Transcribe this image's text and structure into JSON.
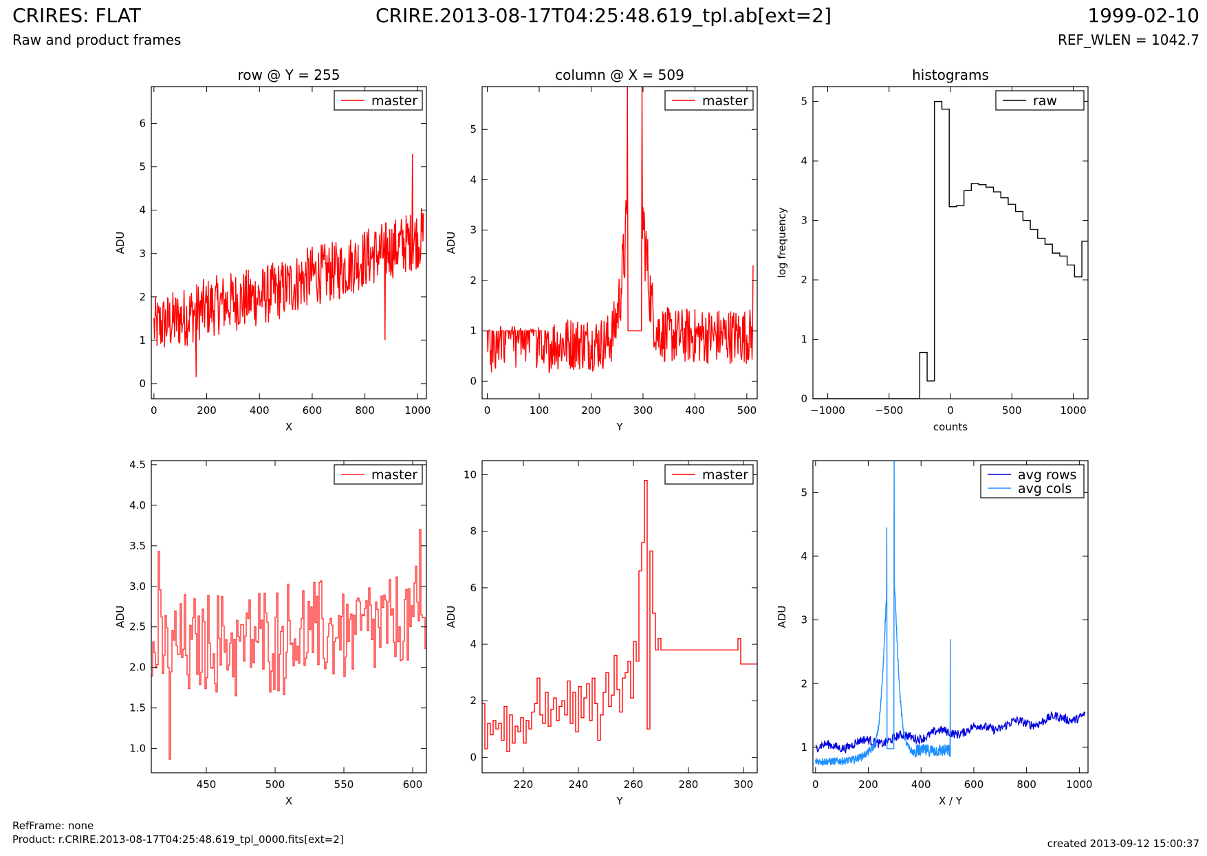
{
  "header": {
    "title": "CRIRES: FLAT",
    "subtitle": "Raw and product frames",
    "filename": "CRIRE.2013-08-17T04:25:48.619_tpl.ab[ext=2]",
    "date": "1999-02-10",
    "ref_wlen": "REF_WLEN = 1042.7"
  },
  "footer": {
    "refframe": "RefFrame: none",
    "product": "Product: r.CRIRE.2013-08-17T04:25:48.619_tpl_0000.fits[ext=2]",
    "created": "created 2013-09-12 15:00:37"
  },
  "colors": {
    "red": "#ff0000",
    "red_light": "#ff3333",
    "black": "#000000",
    "dark_blue": "#0000dd",
    "light_blue": "#1e90ff"
  },
  "chart_data": [
    {
      "type": "line",
      "title": "row @ Y = 255",
      "xlabel": "X",
      "ylabel": "ADU",
      "xlim": [
        -10,
        1033
      ],
      "ylim": [
        -0.35,
        6.85
      ],
      "xticks": [
        0,
        200,
        400,
        600,
        800,
        1000
      ],
      "yticks": [
        0,
        1,
        2,
        3,
        4,
        5,
        6
      ],
      "legend": "top-right",
      "series": [
        {
          "name": "master",
          "color": "#ff0000",
          "style": "noisy",
          "x": [
            0,
            100,
            200,
            300,
            400,
            500,
            600,
            700,
            800,
            900,
            1023
          ],
          "y": [
            1.3,
            1.5,
            1.75,
            1.9,
            2.0,
            2.2,
            2.5,
            2.6,
            2.9,
            3.1,
            3.4
          ],
          "noise": 0.7,
          "spikes": [
            [
              980,
              5.3
            ],
            [
              875,
              1.0
            ],
            [
              160,
              0.15
            ]
          ]
        }
      ]
    },
    {
      "type": "line",
      "title": "column @ X = 509",
      "xlabel": "Y",
      "ylabel": "ADU",
      "xlim": [
        -10,
        520
      ],
      "ylim": [
        -0.35,
        5.85
      ],
      "xticks": [
        0,
        100,
        200,
        300,
        400,
        500
      ],
      "yticks": [
        0,
        1,
        2,
        3,
        4,
        5
      ],
      "legend": "top-right",
      "series": [
        {
          "name": "master",
          "color": "#ff0000",
          "style": "column",
          "flat_end": 120,
          "plateau": [
            270,
            298
          ],
          "plateau_value": 1.0,
          "peak_value": 5.85,
          "edge_spike": [
            512,
            2.3
          ]
        }
      ]
    },
    {
      "type": "step",
      "title": "histograms",
      "xlabel": "counts",
      "ylabel": "log frequency",
      "xlim": [
        -1120,
        1120
      ],
      "ylim": [
        0,
        5.25
      ],
      "xticks": [
        -1000,
        -500,
        0,
        500,
        1000
      ],
      "yticks": [
        0,
        1,
        2,
        3,
        4,
        5
      ],
      "legend": "top-right",
      "series": [
        {
          "name": "raw",
          "color": "#000000",
          "edges": [
            -250,
            -190,
            -130,
            -70,
            -10,
            50,
            110,
            170,
            230,
            290,
            350,
            410,
            470,
            530,
            590,
            650,
            710,
            770,
            830,
            890,
            950,
            1010,
            1070,
            1120
          ],
          "values": [
            0.78,
            0.3,
            5.0,
            4.87,
            3.23,
            3.25,
            3.5,
            3.62,
            3.6,
            3.56,
            3.48,
            3.38,
            3.27,
            3.15,
            3.0,
            2.85,
            2.7,
            2.6,
            2.45,
            2.4,
            2.25,
            2.05,
            2.65
          ]
        }
      ]
    },
    {
      "type": "line",
      "title": "",
      "xlabel": "X",
      "ylabel": "ADU",
      "xlim": [
        410,
        610
      ],
      "ylim": [
        0.7,
        4.55
      ],
      "xticks": [
        450,
        500,
        550,
        600
      ],
      "yticks": [
        1.0,
        1.5,
        2.0,
        2.5,
        3.0,
        3.5,
        4.0,
        4.5
      ],
      "legend": "top-right",
      "series": [
        {
          "name": "master",
          "color": "#ff3333",
          "style": "stepnoise",
          "x": [
            410,
            610
          ],
          "y": [
            2.2,
            2.55
          ],
          "noise": 0.55,
          "spikes": [
            [
              423,
              0.87
            ],
            [
              415,
              3.43
            ],
            [
              605,
              3.7
            ]
          ]
        }
      ]
    },
    {
      "type": "step",
      "title": "",
      "xlabel": "Y",
      "ylabel": "ADU",
      "xlim": [
        205,
        305
      ],
      "ylim": [
        -0.55,
        10.5
      ],
      "xticks": [
        220,
        240,
        260,
        280,
        300
      ],
      "yticks": [
        0,
        2,
        4,
        6,
        8,
        10
      ],
      "legend": "top-right",
      "series": [
        {
          "name": "master",
          "color": "#ff0000",
          "x": [
            205,
            206,
            207,
            208,
            209,
            210,
            211,
            212,
            213,
            214,
            215,
            216,
            217,
            218,
            219,
            220,
            221,
            222,
            223,
            224,
            225,
            226,
            227,
            228,
            229,
            230,
            231,
            232,
            233,
            234,
            235,
            236,
            237,
            238,
            239,
            240,
            241,
            242,
            243,
            244,
            245,
            246,
            247,
            248,
            249,
            250,
            251,
            252,
            253,
            254,
            255,
            256,
            257,
            258,
            259,
            260,
            261,
            262,
            263,
            264,
            265,
            266,
            267,
            268,
            269,
            270,
            298,
            299,
            300,
            301,
            302,
            303,
            304,
            305
          ],
          "y": [
            1.9,
            0.3,
            1.2,
            0.8,
            1.3,
            1.0,
            1.2,
            0.6,
            1.8,
            0.2,
            1.5,
            0.5,
            1.1,
            0.9,
            1.4,
            0.5,
            1.3,
            1.0,
            1.6,
            1.9,
            2.8,
            1.5,
            1.2,
            2.3,
            1.1,
            1.7,
            2.1,
            1.3,
            1.8,
            2.0,
            1.5,
            2.7,
            1.2,
            2.3,
            0.9,
            2.5,
            1.4,
            2.1,
            2.6,
            1.3,
            2.8,
            1.9,
            0.6,
            1.5,
            2.3,
            3.0,
            1.8,
            2.2,
            3.6,
            2.4,
            1.6,
            2.8,
            3.0,
            3.4,
            2.1,
            4.1,
            3.4,
            6.6,
            7.6,
            9.8,
            1.0,
            7.3,
            5.1,
            3.8,
            4.2,
            3.8,
            4.2,
            3.3,
            3.3,
            3.3,
            3.3,
            3.3,
            3.3,
            3.3
          ]
        }
      ]
    },
    {
      "type": "line",
      "title": "",
      "xlabel": "X / Y",
      "ylabel": "ADU",
      "xlim": [
        -10,
        1033
      ],
      "ylim": [
        0.6,
        5.5
      ],
      "xticks": [
        0,
        200,
        400,
        600,
        800,
        1000
      ],
      "yticks": [
        1,
        2,
        3,
        4,
        5
      ],
      "legend": "top-right",
      "series": [
        {
          "name": "avg rows",
          "color": "#0000dd",
          "style": "rows",
          "x": [
            0,
            1023
          ],
          "y": [
            0.98,
            1.5
          ],
          "noise": 0.07
        },
        {
          "name": "avg cols",
          "color": "#1e90ff",
          "style": "cols",
          "x": [
            0,
            511
          ],
          "peak_x": 280,
          "peak_value": 4.45,
          "peak2_x": 300,
          "peak2_value": 5.5,
          "plateau": [
            270,
            298
          ],
          "plateau_value": 0.98,
          "edge_spike": [
            511,
            2.7
          ]
        }
      ]
    }
  ]
}
